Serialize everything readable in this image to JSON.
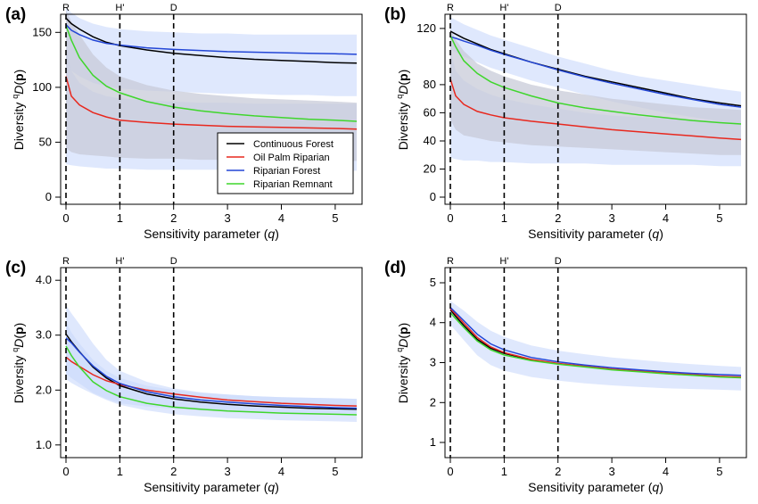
{
  "figure": {
    "xlabel_prefix": "Sensitivity parameter (",
    "xlabel_var": "q",
    "xlabel_suffix": ")",
    "ylabel_prefix": "Diversity ",
    "ylabel_sup": "q",
    "ylabel_main": "D",
    "ylabel_paren_open": "(",
    "ylabel_bold": "p",
    "ylabel_paren_close": ")",
    "reference_lines": [
      {
        "label": "R",
        "q": 0
      },
      {
        "label": "H'",
        "q": 1
      },
      {
        "label": "D",
        "q": 2
      }
    ],
    "legend": [
      {
        "label": "Continuous Forest",
        "color": "#000000"
      },
      {
        "label": "Oil Palm Riparian",
        "color": "#e8281e"
      },
      {
        "label": "Riparian Forest",
        "color": "#2346d6"
      },
      {
        "label": "Riparian Remnant",
        "color": "#3fd62c"
      }
    ],
    "band_color": "#c9d8fb",
    "band_gray": "#c8cbd8"
  },
  "chart_data": [
    {
      "panel": "(a)",
      "type": "line",
      "xlim": [
        0,
        5.4
      ],
      "ylim": [
        0,
        160
      ],
      "xticks": [
        "0",
        "1",
        "2",
        "3",
        "4",
        "5"
      ],
      "yticks": [
        "0",
        "50",
        "100",
        "150"
      ],
      "ytick_values": [
        0,
        50,
        100,
        150
      ],
      "x": [
        0,
        0.1,
        0.25,
        0.5,
        0.75,
        1,
        1.5,
        2,
        2.5,
        3,
        3.5,
        4,
        4.5,
        5,
        5.4
      ],
      "series": [
        {
          "name": "Continuous Forest",
          "values": [
            163,
            158,
            153,
            146,
            141,
            138,
            134,
            131,
            129,
            127,
            125.5,
            124.5,
            123.5,
            122.5,
            122
          ]
        },
        {
          "name": "Oil Palm Riparian",
          "values": [
            110,
            92,
            84,
            77,
            73,
            70,
            68,
            66.5,
            65.5,
            64.5,
            64,
            63.5,
            63,
            62.5,
            62
          ]
        },
        {
          "name": "Riparian Forest",
          "values": [
            157,
            152,
            148,
            143,
            140,
            138.5,
            136,
            134.5,
            133.5,
            132.5,
            132,
            131.5,
            131,
            130.5,
            130
          ]
        },
        {
          "name": "Riparian Remnant",
          "values": [
            156,
            143,
            127,
            111,
            101,
            95,
            87,
            82,
            78.5,
            76,
            74,
            72.5,
            71,
            70,
            69
          ]
        }
      ],
      "bands": [
        {
          "color": "blue",
          "low": [
            125,
            115,
            110,
            104,
            101,
            99,
            97,
            96,
            95,
            94,
            94,
            93,
            93,
            92,
            92
          ],
          "high": [
            172,
            168,
            163,
            158,
            155,
            153,
            151,
            150,
            149,
            149,
            148,
            148,
            148,
            148,
            148
          ]
        },
        {
          "color": "blue",
          "low": [
            30,
            29,
            28,
            27,
            26,
            26,
            25,
            25,
            25,
            25,
            24,
            24,
            24,
            24,
            24
          ],
          "high": [
            135,
            115,
            104,
            96,
            92,
            90,
            88,
            87,
            86,
            86,
            85,
            85,
            85,
            85,
            85
          ]
        },
        {
          "color": "gray",
          "low": [
            45,
            41,
            39,
            38,
            37,
            36,
            35,
            35,
            34,
            34,
            34,
            33,
            33,
            33,
            33
          ],
          "high": [
            170,
            160,
            148,
            130,
            118,
            110,
            102,
            97,
            94,
            92,
            90,
            89,
            88,
            87,
            86
          ]
        }
      ]
    },
    {
      "panel": "(b)",
      "type": "line",
      "xlim": [
        0,
        5.4
      ],
      "ylim": [
        0,
        125
      ],
      "xticks": [
        "0",
        "1",
        "2",
        "3",
        "4",
        "5"
      ],
      "yticks": [
        "0",
        "20",
        "40",
        "60",
        "80",
        "120"
      ],
      "ytick_values": [
        0,
        20,
        40,
        60,
        80,
        120
      ],
      "x": [
        0,
        0.1,
        0.25,
        0.5,
        0.75,
        1,
        1.5,
        2,
        2.5,
        3,
        3.5,
        4,
        4.5,
        5,
        5.4
      ],
      "series": [
        {
          "name": "Continuous Forest",
          "values": [
            118,
            116,
            113,
            109,
            105,
            102,
            96,
            91,
            86,
            82,
            78,
            74,
            70,
            67,
            65
          ]
        },
        {
          "name": "Oil Palm Riparian",
          "values": [
            84,
            72,
            66,
            61,
            58.5,
            56.5,
            54,
            52,
            50,
            48,
            46.5,
            45,
            43.5,
            42,
            41
          ]
        },
        {
          "name": "Riparian Forest",
          "values": [
            114,
            113,
            111,
            108,
            104.5,
            101.5,
            96,
            90.5,
            85.5,
            81,
            77,
            73,
            69.5,
            66,
            64
          ]
        },
        {
          "name": "Riparian Remnant",
          "values": [
            115,
            107,
            97,
            88,
            82,
            78,
            72,
            67,
            63.5,
            61,
            58.5,
            56.5,
            54.5,
            53,
            52
          ]
        }
      ],
      "bands": [
        {
          "color": "blue",
          "low": [
            105,
            103,
            100,
            96,
            92,
            89,
            83,
            78,
            73,
            68,
            64,
            60,
            57,
            54,
            52
          ],
          "high": [
            128,
            126,
            123,
            119,
            115,
            112,
            106,
            100,
            95,
            90,
            86,
            83,
            80,
            77,
            75
          ]
        },
        {
          "color": "blue",
          "low": [
            28,
            27,
            26,
            26,
            25,
            25,
            24,
            24,
            24,
            23,
            23,
            23,
            23,
            22,
            22
          ],
          "high": [
            105,
            90,
            83,
            77,
            73,
            70,
            66,
            63,
            60,
            58,
            57,
            56,
            55,
            54,
            53
          ]
        },
        {
          "color": "gray",
          "low": [
            55,
            48,
            44,
            42,
            40,
            39,
            37,
            36,
            35,
            34,
            33,
            32,
            31,
            30,
            30
          ],
          "high": [
            120,
            112,
            104,
            95,
            90,
            86,
            80,
            76,
            73,
            70,
            68,
            66,
            64,
            63,
            62
          ]
        }
      ]
    },
    {
      "panel": "(c)",
      "type": "line",
      "xlim": [
        0,
        5.4
      ],
      "ylim": [
        0.9,
        4.1
      ],
      "xticks": [
        "0",
        "1",
        "2",
        "3",
        "4",
        "5"
      ],
      "yticks": [
        "1.0",
        "2.0",
        "3.0",
        "4.0"
      ],
      "ytick_values": [
        1.0,
        2.0,
        3.0,
        4.0
      ],
      "x": [
        0,
        0.1,
        0.25,
        0.5,
        0.75,
        1,
        1.5,
        2,
        2.5,
        3,
        3.5,
        4,
        4.5,
        5,
        5.4
      ],
      "series": [
        {
          "name": "Continuous Forest",
          "values": [
            3.02,
            2.88,
            2.7,
            2.42,
            2.22,
            2.08,
            1.93,
            1.84,
            1.78,
            1.74,
            1.71,
            1.69,
            1.67,
            1.66,
            1.65
          ]
        },
        {
          "name": "Oil Palm Riparian",
          "values": [
            2.6,
            2.52,
            2.43,
            2.28,
            2.17,
            2.1,
            2.0,
            1.93,
            1.87,
            1.82,
            1.79,
            1.76,
            1.74,
            1.72,
            1.71
          ]
        },
        {
          "name": "Riparian Forest",
          "values": [
            2.95,
            2.86,
            2.69,
            2.44,
            2.25,
            2.12,
            1.97,
            1.88,
            1.82,
            1.78,
            1.75,
            1.72,
            1.7,
            1.68,
            1.67
          ]
        },
        {
          "name": "Riparian Remnant",
          "values": [
            2.8,
            2.63,
            2.42,
            2.15,
            1.99,
            1.88,
            1.76,
            1.69,
            1.65,
            1.62,
            1.6,
            1.58,
            1.57,
            1.56,
            1.55
          ]
        }
      ],
      "bands": [
        {
          "color": "blue",
          "low": [
            2.2,
            2.13,
            2.05,
            1.93,
            1.82,
            1.73,
            1.63,
            1.56,
            1.52,
            1.49,
            1.47,
            1.45,
            1.44,
            1.43,
            1.42
          ],
          "high": [
            3.55,
            3.4,
            3.2,
            2.85,
            2.55,
            2.35,
            2.15,
            2.03,
            1.96,
            1.92,
            1.89,
            1.87,
            1.86,
            1.85,
            1.84
          ]
        },
        {
          "color": "blue",
          "low": [
            2.3,
            2.22,
            2.12,
            1.95,
            1.84,
            1.76,
            1.7,
            1.66,
            1.63,
            1.61,
            1.6,
            1.59,
            1.58,
            1.58,
            1.57
          ],
          "high": [
            3.25,
            3.05,
            2.85,
            2.55,
            2.35,
            2.22,
            2.08,
            2.0,
            1.95,
            1.92,
            1.89,
            1.87,
            1.86,
            1.85,
            1.84
          ]
        }
      ]
    },
    {
      "panel": "(d)",
      "type": "line",
      "xlim": [
        0,
        5.4
      ],
      "ylim": [
        0.8,
        5.2
      ],
      "xticks": [
        "0",
        "1",
        "2",
        "3",
        "4",
        "5"
      ],
      "yticks": [
        "1",
        "2",
        "3",
        "4",
        "5"
      ],
      "ytick_values": [
        1,
        2,
        3,
        4,
        5
      ],
      "x": [
        0,
        0.1,
        0.25,
        0.5,
        0.75,
        1,
        1.5,
        2,
        2.5,
        3,
        3.5,
        4,
        4.5,
        5,
        5.4
      ],
      "series": [
        {
          "name": "Continuous Forest",
          "values": [
            4.32,
            4.16,
            3.93,
            3.58,
            3.36,
            3.23,
            3.07,
            2.97,
            2.9,
            2.83,
            2.78,
            2.73,
            2.69,
            2.65,
            2.63
          ]
        },
        {
          "name": "Oil Palm Riparian",
          "values": [
            4.35,
            4.21,
            3.99,
            3.63,
            3.39,
            3.25,
            3.08,
            2.98,
            2.91,
            2.84,
            2.79,
            2.74,
            2.7,
            2.66,
            2.64
          ]
        },
        {
          "name": "Riparian Forest",
          "values": [
            4.38,
            4.25,
            4.05,
            3.71,
            3.47,
            3.32,
            3.13,
            3.02,
            2.94,
            2.87,
            2.82,
            2.77,
            2.73,
            2.7,
            2.68
          ]
        },
        {
          "name": "Riparian Remnant",
          "values": [
            4.25,
            4.1,
            3.88,
            3.54,
            3.32,
            3.19,
            3.05,
            2.96,
            2.89,
            2.82,
            2.77,
            2.72,
            2.68,
            2.64,
            2.62
          ]
        }
      ],
      "bands": [
        {
          "color": "blue",
          "low": [
            3.95,
            3.8,
            3.56,
            3.18,
            2.94,
            2.8,
            2.64,
            2.55,
            2.48,
            2.43,
            2.39,
            2.36,
            2.34,
            2.32,
            2.3
          ],
          "high": [
            4.55,
            4.45,
            4.3,
            4.02,
            3.8,
            3.64,
            3.43,
            3.3,
            3.21,
            3.13,
            3.07,
            3.01,
            2.96,
            2.92,
            2.89
          ]
        }
      ]
    }
  ]
}
